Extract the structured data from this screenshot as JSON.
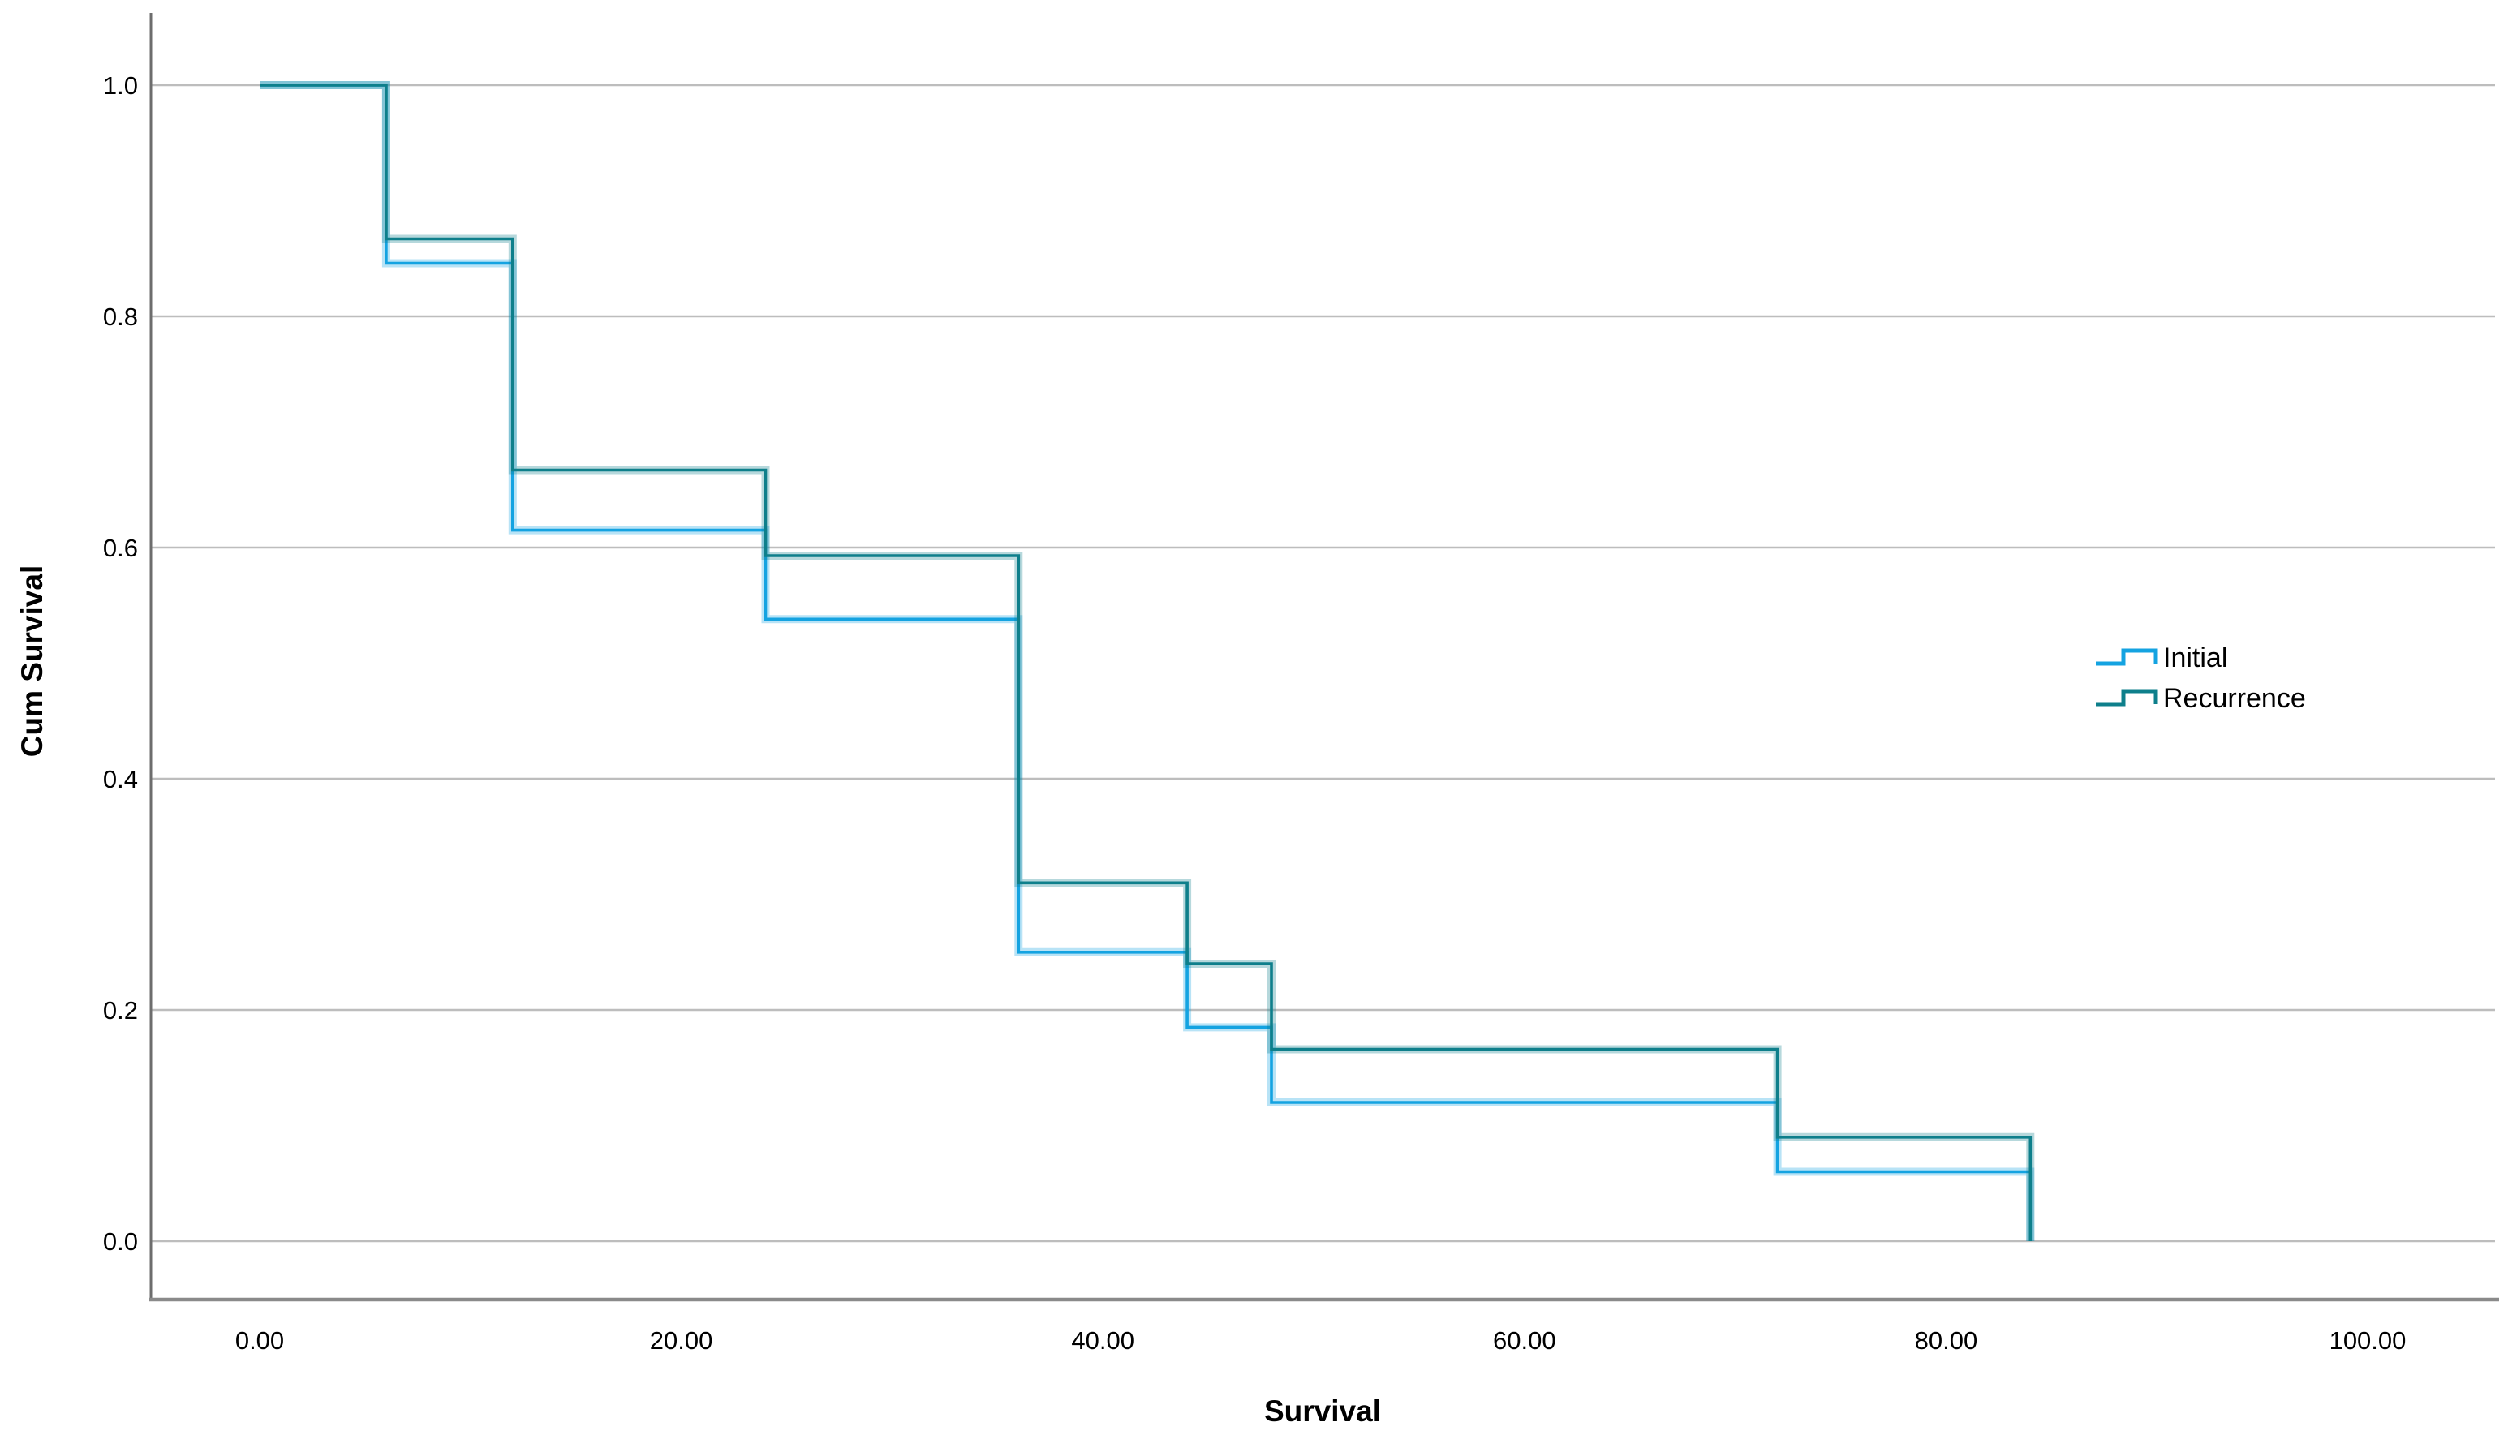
{
  "chart_data": {
    "type": "line",
    "subtype": "kaplan-meier-step",
    "title": "",
    "xlabel": "Survival",
    "ylabel": "Cum Survival",
    "xlim": [
      -5.2,
      106
    ],
    "ylim": [
      0.0,
      1.0
    ],
    "grid": "horizontal-only",
    "legend_position": "right-inside",
    "x_tick_labels": [
      "0.00",
      "20.00",
      "40.00",
      "60.00",
      "80.00",
      "100.00"
    ],
    "x_tick_values": [
      0,
      20,
      40,
      60,
      80,
      100
    ],
    "y_tick_labels": [
      "0.0",
      "0.2",
      "0.4",
      "0.6",
      "0.8",
      "1.0"
    ],
    "y_tick_values": [
      0.0,
      0.2,
      0.4,
      0.6,
      0.8,
      1.0
    ],
    "colors": {
      "initial_line": "#14A3E1",
      "recurrence_line": "#0E7F8B",
      "gridline": "#bdbdbd",
      "x_axis_line": "#8a8a8a",
      "y_axis_line": "#6d6d6d",
      "text": "#000000"
    },
    "series": [
      {
        "name": "Initial",
        "color": "#14A3E1",
        "steps": [
          [
            0,
            1.0
          ],
          [
            6,
            0.846
          ],
          [
            12,
            0.615
          ],
          [
            24,
            0.538
          ],
          [
            36,
            0.25
          ],
          [
            44,
            0.185
          ],
          [
            48,
            0.12
          ],
          [
            72,
            0.06
          ],
          [
            84,
            0.0
          ]
        ]
      },
      {
        "name": "Recurrence",
        "color": "#0E7F8B",
        "steps": [
          [
            0,
            1.0
          ],
          [
            6,
            0.867
          ],
          [
            12,
            0.667
          ],
          [
            24,
            0.593
          ],
          [
            36,
            0.31
          ],
          [
            44,
            0.24
          ],
          [
            48,
            0.166
          ],
          [
            72,
            0.09
          ],
          [
            84,
            0.0
          ]
        ]
      }
    ]
  }
}
